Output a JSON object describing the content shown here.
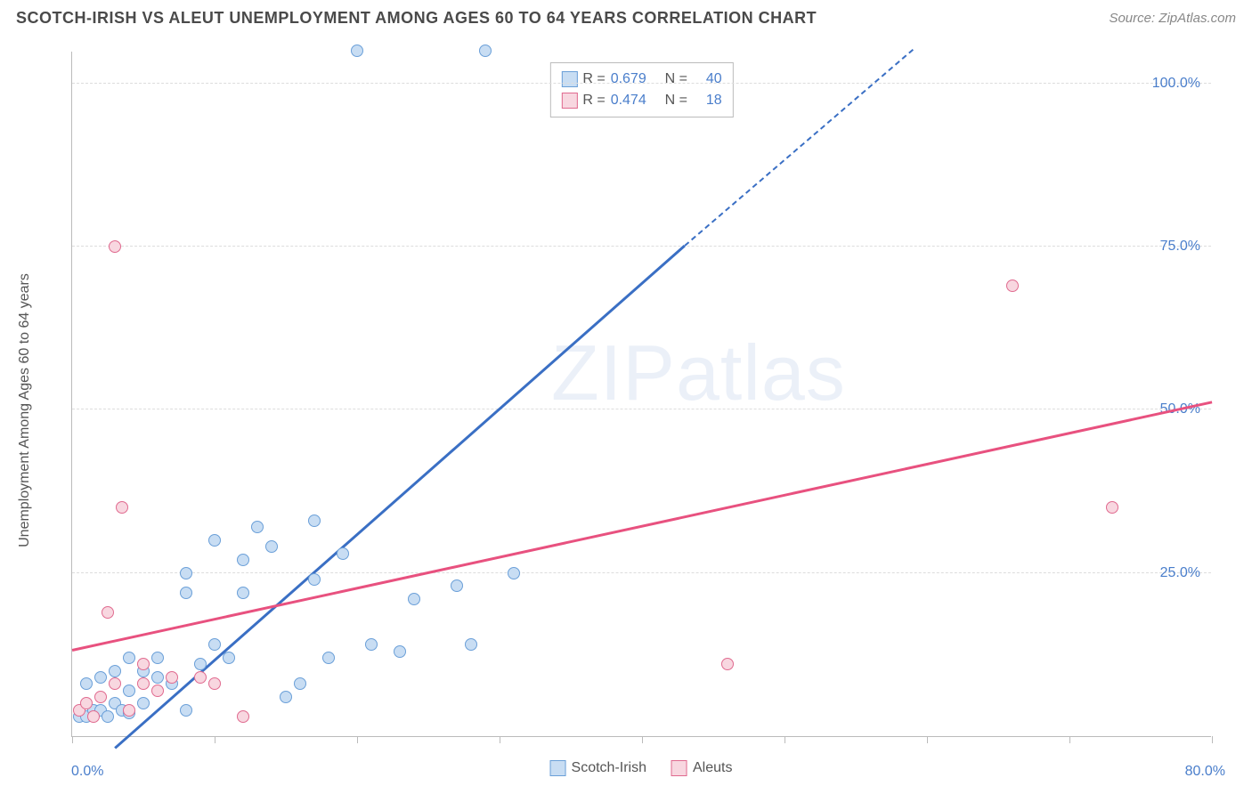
{
  "title": "SCOTCH-IRISH VS ALEUT UNEMPLOYMENT AMONG AGES 60 TO 64 YEARS CORRELATION CHART",
  "source": "Source: ZipAtlas.com",
  "ylabel": "Unemployment Among Ages 60 to 64 years",
  "watermark": {
    "bold": "ZIP",
    "light": "atlas"
  },
  "chart": {
    "type": "scatter",
    "xlim": [
      0,
      80
    ],
    "ylim": [
      0,
      105
    ],
    "x_label_min": "0.0%",
    "x_label_max": "80.0%",
    "y_ticks": [
      25,
      50,
      75,
      100
    ],
    "y_tick_labels": [
      "25.0%",
      "50.0%",
      "75.0%",
      "100.0%"
    ],
    "x_ticks": [
      0,
      10,
      20,
      30,
      40,
      50,
      60,
      70,
      80
    ],
    "grid_color": "#dddddd",
    "axis_color": "#bbbbbb",
    "axis_text_color": "#4a7ecb",
    "background_color": "#ffffff",
    "marker_radius": 7,
    "marker_stroke_width": 1.5,
    "series": [
      {
        "name": "Scotch-Irish",
        "fill": "#c8ddf3",
        "stroke": "#6a9fd8",
        "R": "0.679",
        "N": "40",
        "trend": {
          "x1": 3,
          "y1": -2,
          "x2": 43,
          "y2": 75,
          "dash_x2": 59,
          "dash_y2": 105,
          "color": "#3a6fc4"
        },
        "points": [
          [
            0.5,
            3
          ],
          [
            1,
            3
          ],
          [
            1.5,
            4
          ],
          [
            2,
            4
          ],
          [
            2.5,
            3
          ],
          [
            3,
            5
          ],
          [
            3.5,
            4
          ],
          [
            4,
            3.5
          ],
          [
            4,
            7
          ],
          [
            5,
            5
          ],
          [
            1,
            8
          ],
          [
            2,
            9
          ],
          [
            3,
            10
          ],
          [
            5,
            10
          ],
          [
            6,
            9
          ],
          [
            4,
            12
          ],
          [
            6,
            12
          ],
          [
            7,
            8
          ],
          [
            8,
            4
          ],
          [
            8,
            22
          ],
          [
            8,
            25
          ],
          [
            9,
            11
          ],
          [
            10,
            14
          ],
          [
            10,
            30
          ],
          [
            11,
            12
          ],
          [
            12,
            22
          ],
          [
            12,
            27
          ],
          [
            13,
            32
          ],
          [
            14,
            29
          ],
          [
            15,
            6
          ],
          [
            16,
            8
          ],
          [
            17,
            24
          ],
          [
            17,
            33
          ],
          [
            18,
            12
          ],
          [
            19,
            28
          ],
          [
            20,
            105
          ],
          [
            21,
            14
          ],
          [
            23,
            13
          ],
          [
            24,
            21
          ],
          [
            27,
            23
          ],
          [
            28,
            14
          ],
          [
            29,
            105
          ],
          [
            31,
            25
          ]
        ]
      },
      {
        "name": "Aleuts",
        "fill": "#f8d7e0",
        "stroke": "#e06a8f",
        "R": "0.474",
        "N": "18",
        "trend": {
          "x1": 0,
          "y1": 13,
          "x2": 80,
          "y2": 51,
          "color": "#e8517f"
        },
        "points": [
          [
            0.5,
            4
          ],
          [
            1,
            5
          ],
          [
            1.5,
            3
          ],
          [
            2,
            6
          ],
          [
            2.5,
            19
          ],
          [
            3,
            8
          ],
          [
            3,
            75
          ],
          [
            4,
            4
          ],
          [
            5,
            8
          ],
          [
            5,
            11
          ],
          [
            6,
            7
          ],
          [
            7,
            9
          ],
          [
            3.5,
            35
          ],
          [
            9,
            9
          ],
          [
            10,
            8
          ],
          [
            12,
            3
          ],
          [
            46,
            11
          ],
          [
            66,
            69
          ],
          [
            73,
            35
          ]
        ]
      }
    ]
  },
  "legend_bottom": [
    {
      "label": "Scotch-Irish",
      "fill": "#c8ddf3",
      "stroke": "#6a9fd8"
    },
    {
      "label": "Aleuts",
      "fill": "#f8d7e0",
      "stroke": "#e06a8f"
    }
  ]
}
